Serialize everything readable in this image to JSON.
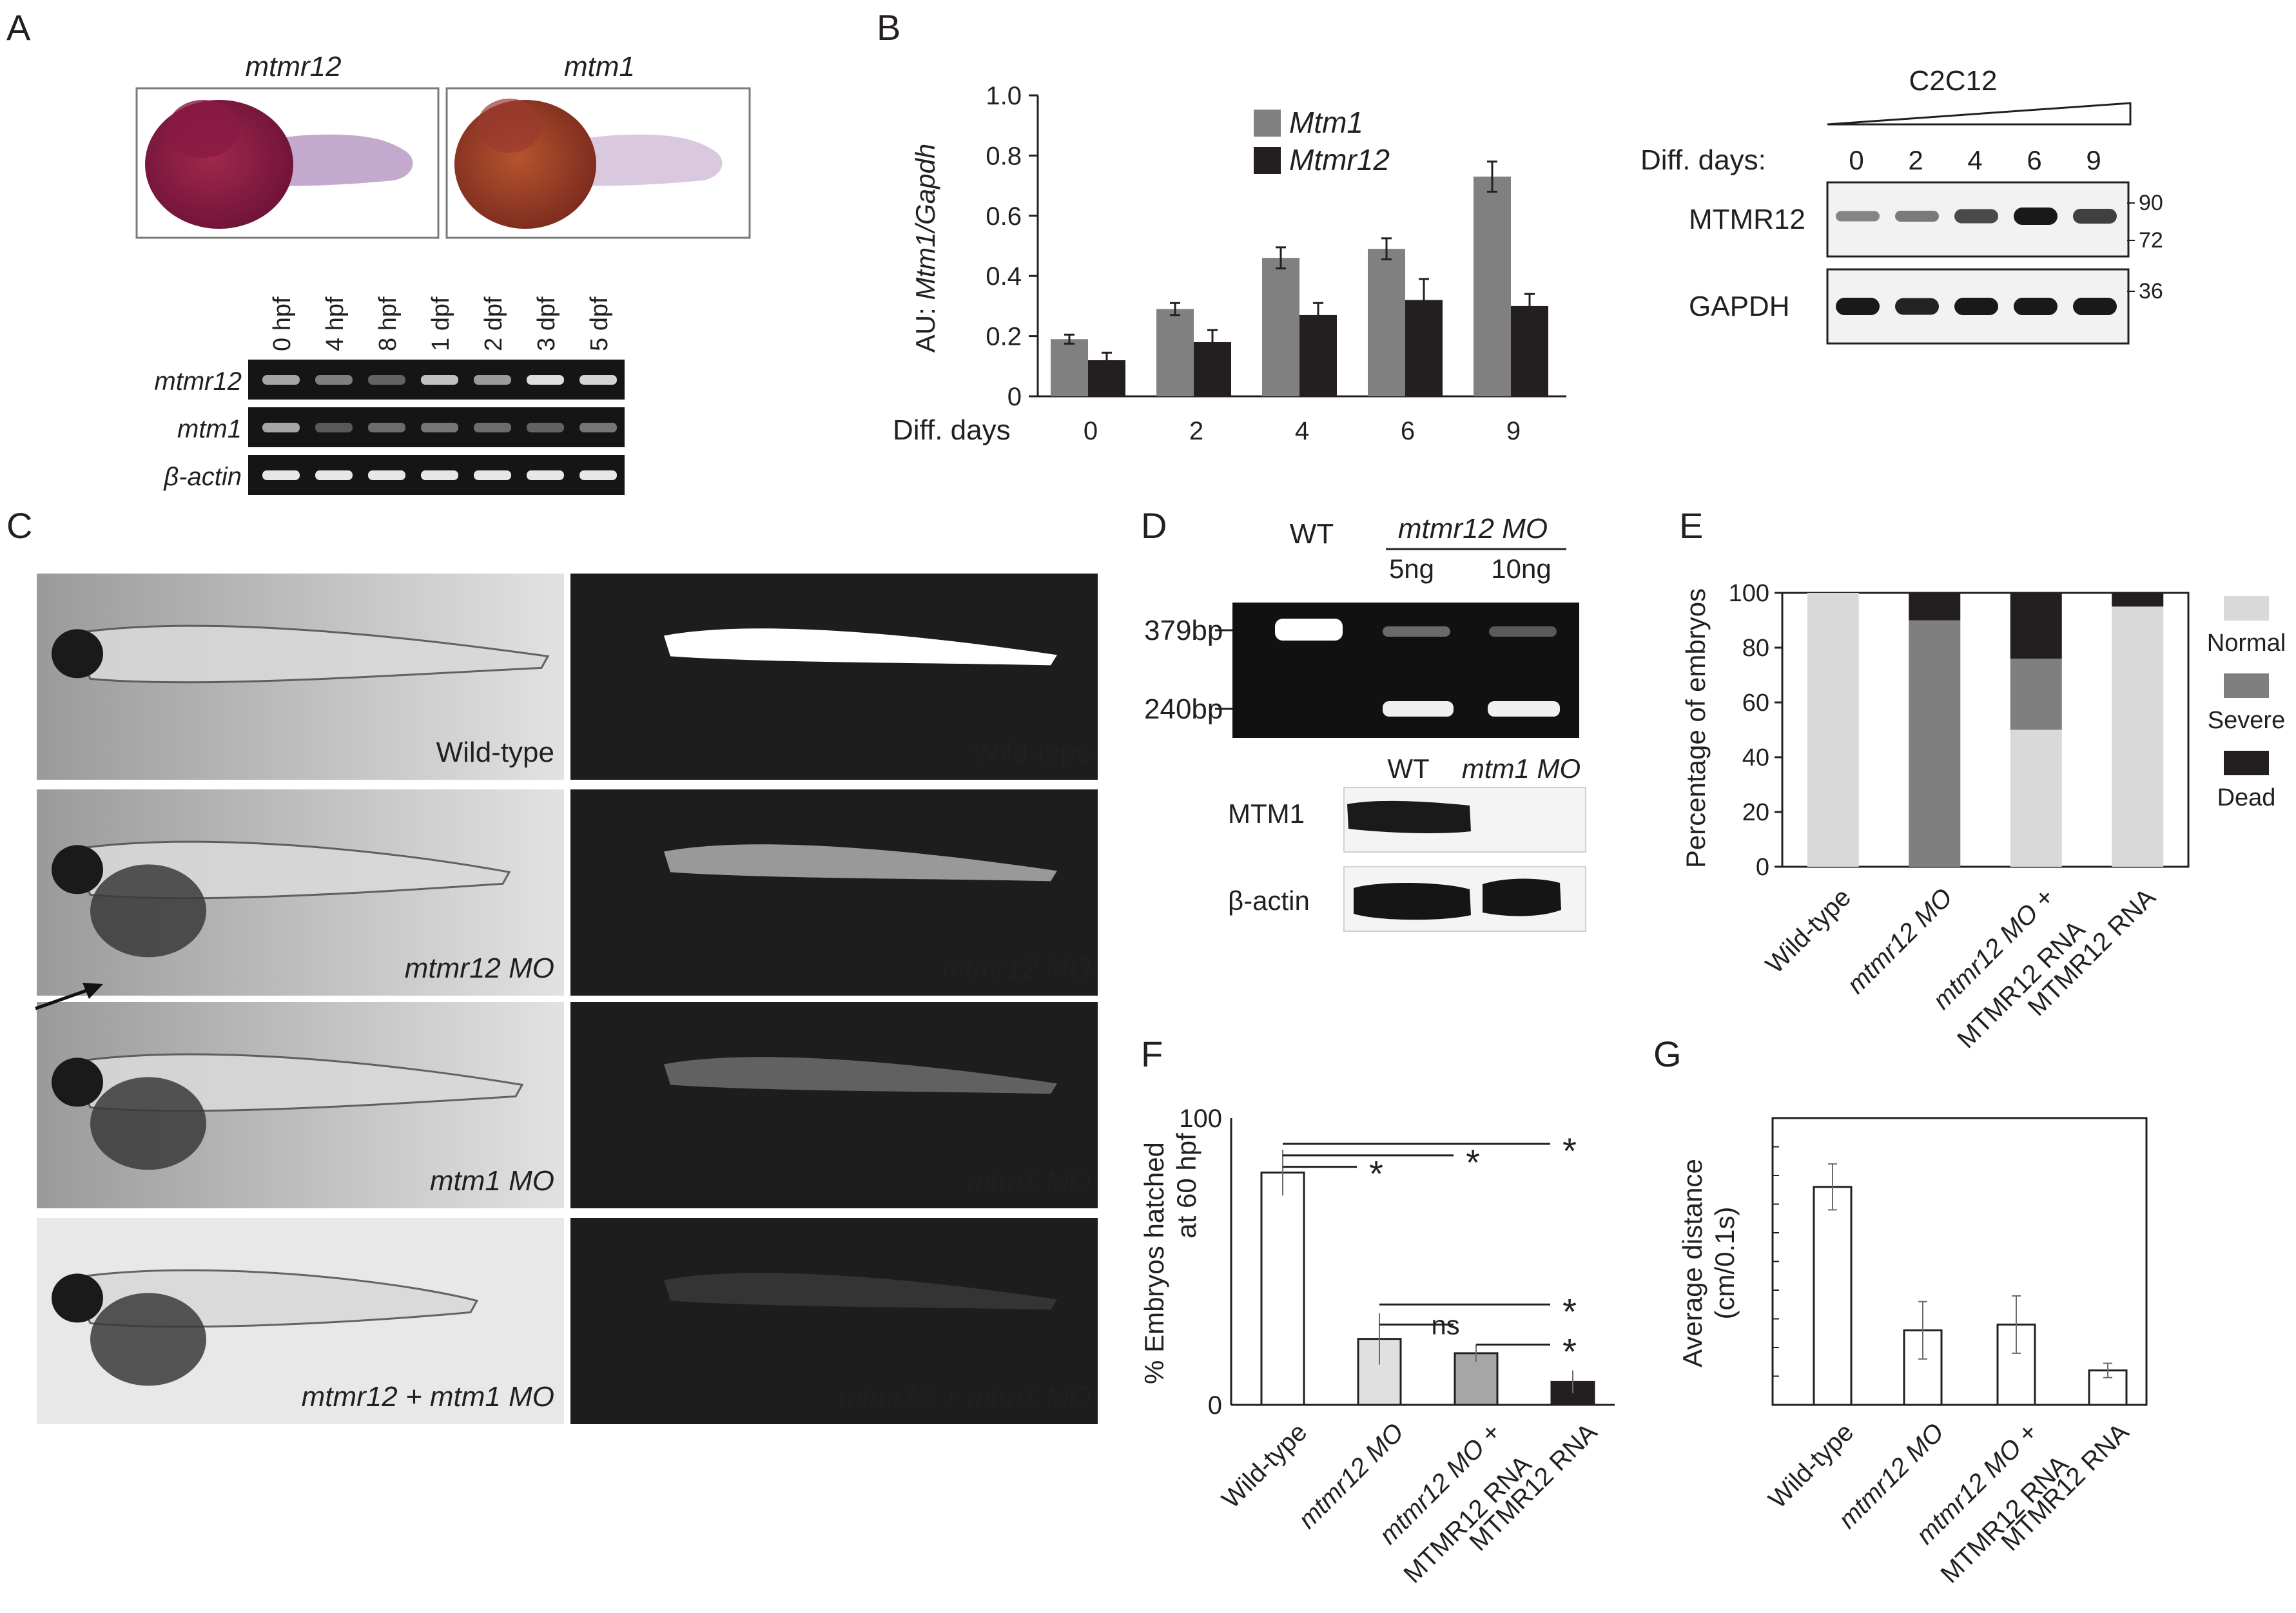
{
  "panels": {
    "A": {
      "letter": "A",
      "images": [
        {
          "label": "mtmr12"
        },
        {
          "label": "mtm1"
        }
      ],
      "gel": {
        "lanes": [
          "0 hpf",
          "4 hpf",
          "8 hpf",
          "1 dpf",
          "2 dpf",
          "3 dpf",
          "5 dpf"
        ],
        "rows": [
          {
            "label": "mtmr12",
            "intensity": [
              0.55,
              0.35,
              0.2,
              0.7,
              0.5,
              0.85,
              0.8
            ]
          },
          {
            "label": "mtm1",
            "intensity": [
              0.55,
              0.15,
              0.25,
              0.3,
              0.25,
              0.2,
              0.3
            ]
          },
          {
            "label": "β-actin",
            "intensity": [
              0.9,
              0.9,
              0.9,
              0.9,
              0.9,
              0.9,
              0.9
            ]
          }
        ]
      }
    },
    "B": {
      "letter": "B",
      "blot": {
        "title": "C2C12",
        "days_label": "Diff. days:",
        "days": [
          "0",
          "2",
          "4",
          "6",
          "9"
        ],
        "rows": [
          {
            "label": "MTMR12",
            "intensity": [
              0.4,
              0.45,
              0.7,
              0.95,
              0.75
            ]
          },
          {
            "label": "GAPDH",
            "intensity": [
              0.95,
              0.9,
              0.95,
              0.95,
              0.95
            ]
          }
        ],
        "markers": [
          "90",
          "72",
          "36"
        ]
      }
    },
    "C": {
      "letter": "C",
      "rows": [
        {
          "label": "Wild-type",
          "glow": 1.0
        },
        {
          "label": "mtmr12 MO",
          "glow": 0.55
        },
        {
          "label": "mtm1 MO",
          "glow": 0.3
        },
        {
          "label": "mtmr12 + mtm1 MO",
          "glow": 0.1
        }
      ]
    },
    "D": {
      "letter": "D",
      "gel_headers": {
        "wt": "WT",
        "mo": "mtmr12 MO",
        "doses": [
          "5ng",
          "10ng"
        ]
      },
      "bands": [
        "379bp",
        "240bp"
      ],
      "blot_headers": {
        "wt": "WT",
        "mo": "mtm1 MO"
      },
      "blot_rows": [
        "MTM1",
        "β-actin"
      ]
    },
    "E": {
      "letter": "E"
    },
    "F": {
      "letter": "F"
    },
    "G": {
      "letter": "G"
    }
  },
  "chart_data": [
    {
      "id": "B",
      "type": "bar",
      "ylabel_prefix": "AU: ",
      "ylabel_italic": "Mtm1/Gapdh",
      "xlabel": "Diff. days",
      "categories": [
        "0",
        "2",
        "4",
        "6",
        "9"
      ],
      "ylim": [
        0,
        1.0
      ],
      "yticks": [
        "0",
        "0.2",
        "0.4",
        "0.6",
        "0.8",
        "1.0"
      ],
      "legend_position": "top-center",
      "series": [
        {
          "name": "Mtm1",
          "color": "#808080",
          "values": [
            0.19,
            0.29,
            0.46,
            0.49,
            0.73
          ],
          "errors": [
            0.015,
            0.02,
            0.035,
            0.035,
            0.05
          ]
        },
        {
          "name": "Mtmr12",
          "color": "#231f20",
          "values": [
            0.12,
            0.18,
            0.27,
            0.32,
            0.3
          ],
          "errors": [
            0.025,
            0.04,
            0.04,
            0.07,
            0.04
          ]
        }
      ]
    },
    {
      "id": "E",
      "type": "bar",
      "stacked": true,
      "ylabel": "Percentage of embryos",
      "ylim": [
        0,
        100
      ],
      "yticks": [
        "0",
        "20",
        "40",
        "60",
        "80",
        "100"
      ],
      "categories": [
        "Wild-type",
        "mtmr12 MO",
        "mtmr12 MO +|MTMR12 RNA",
        "MTMR12 RNA"
      ],
      "legend_position": "right",
      "series": [
        {
          "name": "Normal",
          "color": "#d9d9d9",
          "values": [
            100,
            0,
            50,
            95
          ]
        },
        {
          "name": "Severe",
          "color": "#7f7f7f",
          "values": [
            0,
            90,
            26,
            0
          ]
        },
        {
          "name": "Dead",
          "color": "#231f20",
          "values": [
            0,
            10,
            24,
            5
          ]
        }
      ]
    },
    {
      "id": "F",
      "type": "bar",
      "ylabel": "% Embryos hatched",
      "ylabel2": "at 60 hpf",
      "ylim": [
        0,
        100
      ],
      "yticks": [
        "0",
        "100"
      ],
      "categories": [
        "Wild-type",
        "mtmr12 MO",
        "mtmr12 MO +|MTMR12 RNA",
        "MTMR12 RNA"
      ],
      "values": [
        81,
        23,
        18,
        8
      ],
      "errors": [
        8,
        9,
        3,
        4
      ],
      "colors": [
        "#ffffff",
        "#e0e0e0",
        "#a6a6a6",
        "#231f20"
      ],
      "annotations": [
        {
          "from": 0,
          "to": 1,
          "level": 83,
          "label": "*"
        },
        {
          "from": 0,
          "to": 2,
          "level": 87,
          "label": "*"
        },
        {
          "from": 0,
          "to": 3,
          "level": 91,
          "label": "*"
        },
        {
          "from": 1,
          "to": 3,
          "level": 35,
          "label": "*"
        },
        {
          "from": 1,
          "to": 2,
          "level": 28,
          "label": "ns"
        },
        {
          "from": 2,
          "to": 3,
          "level": 21,
          "label": "*"
        }
      ]
    },
    {
      "id": "G",
      "type": "bar",
      "ylabel": "Average distance",
      "ylabel2": "(cm/0.1s)",
      "ylim": [
        0,
        1
      ],
      "categories": [
        "Wild-type",
        "mtmr12 MO",
        "mtmr12 MO +|MTMR12 RNA",
        "MTMR12 RNA"
      ],
      "values": [
        0.76,
        0.26,
        0.28,
        0.12
      ],
      "errors": [
        0.08,
        0.1,
        0.1,
        0.025
      ],
      "colors": [
        "#ffffff",
        "#ffffff",
        "#ffffff",
        "#ffffff"
      ]
    }
  ]
}
